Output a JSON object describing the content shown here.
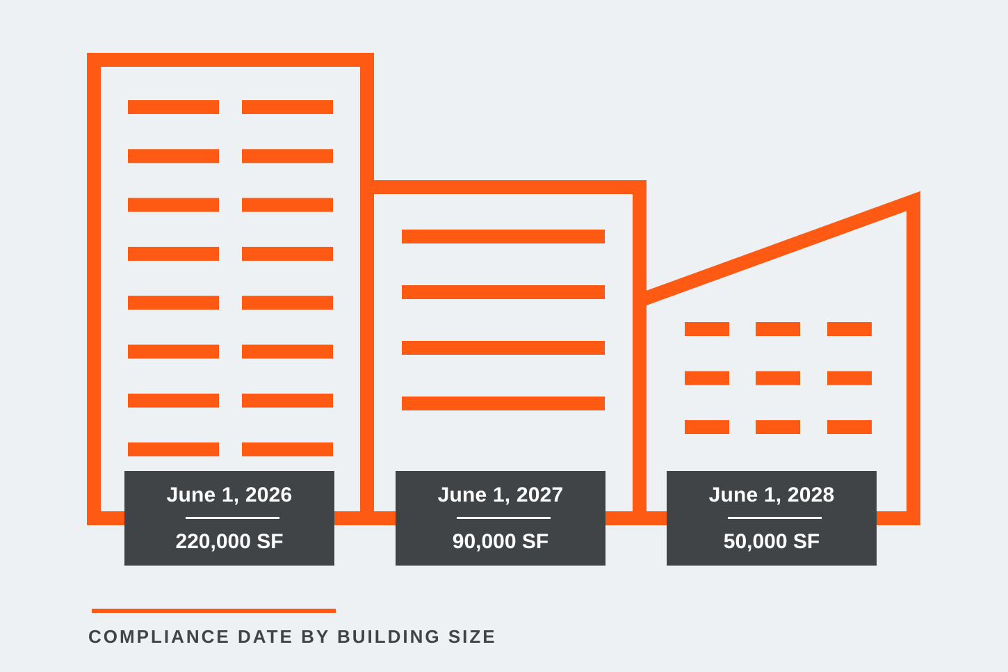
{
  "colors": {
    "accent": "#ff5a14",
    "label_background": "#414447",
    "label_text": "#ffffff",
    "page_background": "#eef1f4",
    "caption_text": "#414447"
  },
  "buildings": [
    {
      "name": "tall-building",
      "date": "June 1, 2026",
      "size": "220,000 SF"
    },
    {
      "name": "mid-building",
      "date": "June 1, 2027",
      "size": "90,000 SF"
    },
    {
      "name": "low-building",
      "date": "June 1, 2028",
      "size": "50,000 SF"
    }
  ],
  "caption": "COMPLIANCE DATE BY BUILDING SIZE"
}
